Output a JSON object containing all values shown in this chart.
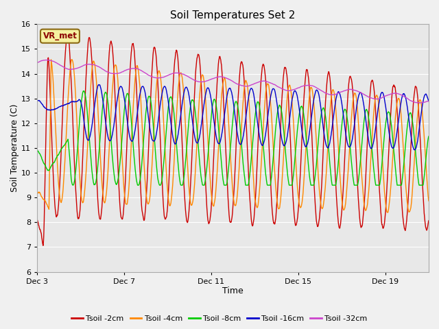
{
  "title": "Soil Temperatures Set 2",
  "xlabel": "Time",
  "ylabel": "Soil Temperature (C)",
  "ylim": [
    6.0,
    16.0
  ],
  "yticks": [
    6.0,
    7.0,
    8.0,
    9.0,
    10.0,
    11.0,
    12.0,
    13.0,
    14.0,
    15.0,
    16.0
  ],
  "xtick_labels": [
    "Dec 3",
    "Dec 7",
    "Dec 11",
    "Dec 15",
    "Dec 19"
  ],
  "xtick_positions": [
    0,
    4,
    8,
    12,
    16
  ],
  "xlim": [
    0,
    18
  ],
  "fig_bg_color": "#f0f0f0",
  "plot_bg_color": "#e8e8e8",
  "grid_color": "#ffffff",
  "legend_label_box": "VR_met",
  "vr_met_text_color": "#8B0000",
  "vr_met_box_facecolor": "#f5f0a0",
  "vr_met_box_edgecolor": "#8B6914",
  "series_colors": {
    "Tsoil -2cm": "#cc0000",
    "Tsoil -4cm": "#ff8800",
    "Tsoil -8cm": "#00cc00",
    "Tsoil -16cm": "#0000cc",
    "Tsoil -32cm": "#cc44cc"
  },
  "series_names": [
    "Tsoil -2cm",
    "Tsoil -4cm",
    "Tsoil -8cm",
    "Tsoil -16cm",
    "Tsoil -32cm"
  ],
  "linewidth": 1.0,
  "title_fontsize": 11,
  "axis_label_fontsize": 9,
  "tick_fontsize": 8,
  "legend_fontsize": 8
}
